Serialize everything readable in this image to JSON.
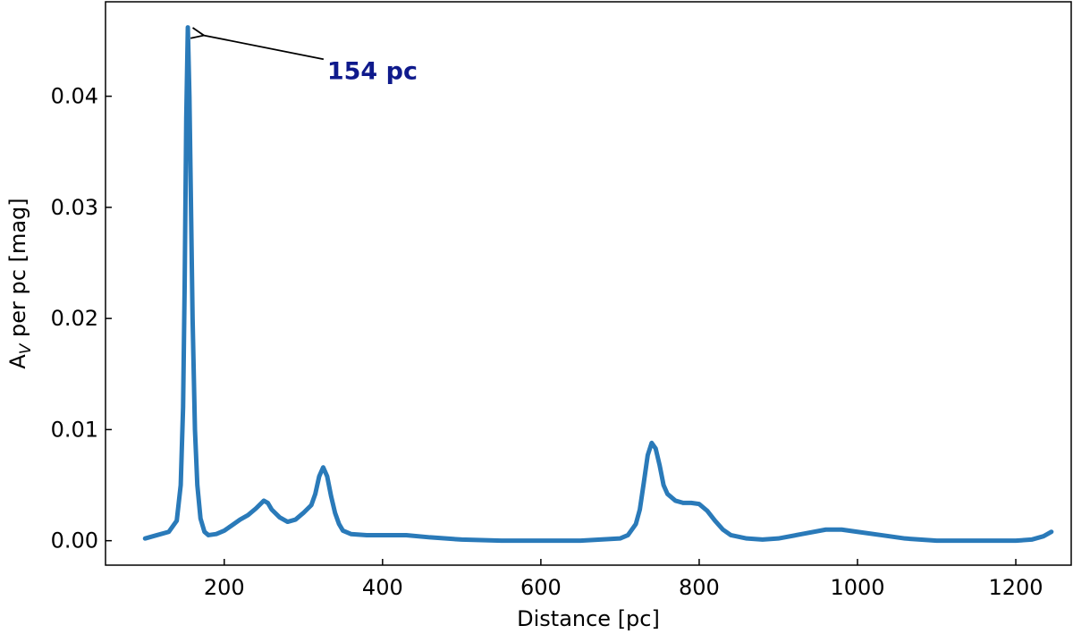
{
  "chart_data": {
    "type": "line",
    "xlabel": "Distance [pc]",
    "ylabel_main": "A",
    "ylabel_sub": "V",
    "ylabel_rest": " per pc [mag]",
    "xlim": [
      50,
      1270
    ],
    "ylim": [
      -0.0022,
      0.0485
    ],
    "xticks": [
      200,
      400,
      600,
      800,
      1000,
      1200
    ],
    "yticks": [
      0.0,
      0.01,
      0.02,
      0.03,
      0.04
    ],
    "ytick_labels": [
      "0.00",
      "0.01",
      "0.02",
      "0.03",
      "0.04"
    ],
    "grid": false,
    "line_color": "#2a7ab9",
    "annotation": {
      "text": "154 pc",
      "x": 154,
      "y": 0.0462,
      "text_x": 330,
      "text_y": 0.0422,
      "color": "#0f1a8c"
    },
    "series": [
      {
        "x": [
          100,
          115,
          130,
          140,
          145,
          148,
          150,
          152,
          154,
          156,
          158,
          160,
          163,
          166,
          170,
          175,
          180,
          190,
          200,
          210,
          220,
          230,
          240,
          250,
          255,
          260,
          270,
          280,
          290,
          300,
          310,
          315,
          320,
          325,
          330,
          335,
          340,
          345,
          350,
          360,
          380,
          400,
          430,
          460,
          500,
          550,
          600,
          650,
          700,
          710,
          720,
          725,
          730,
          735,
          740,
          745,
          750,
          755,
          760,
          770,
          780,
          790,
          800,
          810,
          820,
          830,
          840,
          860,
          880,
          900,
          930,
          960,
          980,
          1000,
          1030,
          1060,
          1100,
          1150,
          1200,
          1220,
          1235,
          1245
        ],
        "y": [
          0.0002,
          0.0005,
          0.0008,
          0.0018,
          0.005,
          0.012,
          0.023,
          0.038,
          0.0462,
          0.04,
          0.03,
          0.02,
          0.01,
          0.005,
          0.002,
          0.0008,
          0.0005,
          0.0006,
          0.0009,
          0.0014,
          0.0019,
          0.0023,
          0.0029,
          0.0036,
          0.0034,
          0.0028,
          0.0021,
          0.0017,
          0.0019,
          0.0025,
          0.0032,
          0.0042,
          0.0058,
          0.0066,
          0.0058,
          0.004,
          0.0025,
          0.0015,
          0.0009,
          0.0006,
          0.0005,
          0.0005,
          0.0005,
          0.0003,
          0.0001,
          0.0,
          0.0,
          0.0,
          0.0002,
          0.0005,
          0.0015,
          0.0028,
          0.0052,
          0.0077,
          0.0088,
          0.0083,
          0.0068,
          0.005,
          0.0042,
          0.0036,
          0.0034,
          0.0034,
          0.0033,
          0.0027,
          0.0018,
          0.001,
          0.0005,
          0.0002,
          0.0001,
          0.0002,
          0.0006,
          0.001,
          0.001,
          0.0008,
          0.0005,
          0.0002,
          0.0,
          0.0,
          0.0,
          0.0001,
          0.0004,
          0.0008
        ]
      }
    ]
  }
}
